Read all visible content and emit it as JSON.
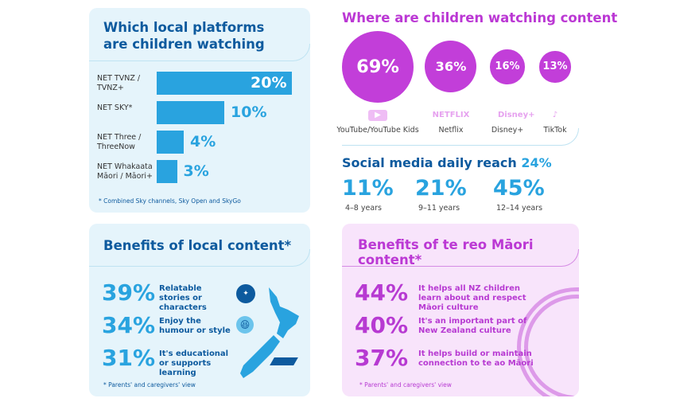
{
  "chart_data": [
    {
      "type": "bar",
      "title": "Which local platforms are children watching",
      "categories": [
        "NET TVNZ / TVNZ+",
        "NET SKY*",
        "NET Three / ThreeNow",
        "NET Whakaata Māori / Māori+"
      ],
      "values": [
        20,
        10,
        4,
        3
      ],
      "labels": [
        "20%",
        "10%",
        "4%",
        "3%"
      ],
      "footnote": "* Combined Sky channels, Sky Open and SkyGo",
      "color": "#29a3df"
    },
    {
      "type": "bubble",
      "title": "Where are children watching content",
      "categories": [
        "YouTube/YouTube Kids",
        "Netflix",
        "Disney+",
        "TikTok"
      ],
      "values": [
        69,
        36,
        16,
        13
      ],
      "labels": [
        "69%",
        "36%",
        "16%",
        "13%"
      ],
      "icons": [
        "youtube-icon",
        "netflix-logo",
        "disney-plus-logo",
        "tiktok-icon"
      ],
      "color": "#c23ed9"
    },
    {
      "type": "table",
      "title": "Social media daily reach",
      "title_value": "24%",
      "categories": [
        "4–8 years",
        "9–11 years",
        "12–14 years"
      ],
      "values": [
        11,
        21,
        45
      ],
      "labels": [
        "11%",
        "21%",
        "45%"
      ]
    },
    {
      "type": "table",
      "title": "Benefits of local content*",
      "items": [
        {
          "value": "39%",
          "text": "Relatable stories or characters",
          "icon": "nz-flag-icon"
        },
        {
          "value": "34%",
          "text": "Enjoy the humour or style",
          "icon": "laughing-face-icon"
        },
        {
          "value": "31%",
          "text": "It's educational or supports learning",
          "icon": "graduation-cap-icon"
        }
      ],
      "footnote": "* Parents' and caregivers' view"
    },
    {
      "type": "table",
      "title": "Benefits of te reo Māori content*",
      "items": [
        {
          "value": "44%",
          "text": "It helps all NZ children learn about and respect Māori culture"
        },
        {
          "value": "40%",
          "text": "It's an important part of New Zealand culture"
        },
        {
          "value": "37%",
          "text": "It helps build or maintain connection to te ao Māori"
        }
      ],
      "footnote": "* Parents' and caregivers' view"
    }
  ],
  "colors": {
    "dark_blue": "#0d5a9e",
    "light_blue": "#29a3df",
    "purple": "#c23ed9"
  }
}
